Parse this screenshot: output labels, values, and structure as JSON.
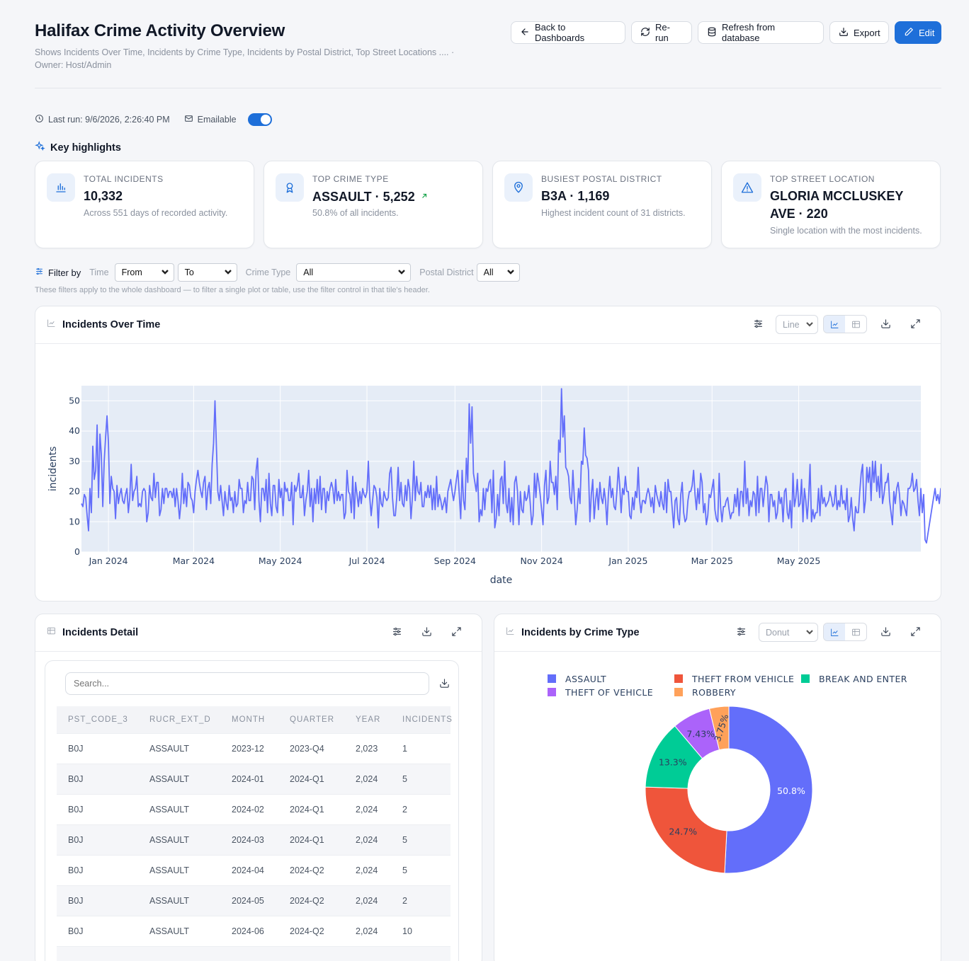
{
  "header": {
    "title": "Halifax Crime Activity Overview",
    "subtitle": "Shows Incidents Over Time, Incidents by Crime Type, Incidents by Postal District, Top Street Locations ....  ·  Owner: Host/Admin",
    "buttons": {
      "back": "Back to Dashboards",
      "rerun": "Re-run",
      "refresh": "Refresh from database",
      "export": "Export",
      "edit": "Edit"
    }
  },
  "meta": {
    "last_run": "Last run: 9/6/2026, 2:26:40 PM",
    "emailable": "Emailable",
    "emailable_on": true
  },
  "highlights": {
    "title": "Key highlights",
    "cards": [
      {
        "label": "Total incidents",
        "value": "10,332",
        "sub": "Across 551 days of recorded activity.",
        "icon": "bar-chart-icon"
      },
      {
        "label": "Top crime type",
        "value": "ASSAULT · 5,252",
        "sub": "50.8% of all incidents.",
        "icon": "award-icon"
      },
      {
        "label": "Busiest postal district",
        "value": "B3A · 1,169",
        "sub": "Highest incident count of 31 districts.",
        "icon": "map-pin-icon"
      },
      {
        "label": "Top street location",
        "value": "GLORIA MCCLUSKEY AVE · 220",
        "sub": "Single location with the most incidents.",
        "icon": "alert-triangle-icon"
      }
    ]
  },
  "filters": {
    "label": "Filter by",
    "time_label": "Time",
    "from": "From",
    "to": "To",
    "crime_label": "Crime Type",
    "crime_value": "All",
    "postal_label": "Postal District",
    "postal_value": "All",
    "note": "These filters apply to the whole dashboard — to filter a single plot or table, use the filter control in that tile's header."
  },
  "panels": {
    "over_time": {
      "title": "Incidents Over Time",
      "view": "Line"
    },
    "detail": {
      "title": "Incidents Detail",
      "search_placeholder": "Search..."
    },
    "crime_type": {
      "title": "Incidents by Crime Type",
      "view": "Donut"
    }
  },
  "table": {
    "columns": [
      "PST_CODE_3",
      "RUCR_EXT_D",
      "MONTH",
      "QUARTER",
      "YEAR",
      "INCIDENTS"
    ],
    "rows": [
      [
        "B0J",
        "ASSAULT",
        "2023-12",
        "2023-Q4",
        "2,023",
        "1"
      ],
      [
        "B0J",
        "ASSAULT",
        "2024-01",
        "2024-Q1",
        "2,024",
        "5"
      ],
      [
        "B0J",
        "ASSAULT",
        "2024-02",
        "2024-Q1",
        "2,024",
        "2"
      ],
      [
        "B0J",
        "ASSAULT",
        "2024-03",
        "2024-Q1",
        "2,024",
        "5"
      ],
      [
        "B0J",
        "ASSAULT",
        "2024-04",
        "2024-Q2",
        "2,024",
        "5"
      ],
      [
        "B0J",
        "ASSAULT",
        "2024-05",
        "2024-Q2",
        "2,024",
        "2"
      ],
      [
        "B0J",
        "ASSAULT",
        "2024-06",
        "2024-Q2",
        "2,024",
        "10"
      ],
      [
        "",
        "",
        "",
        "",
        "",
        ""
      ]
    ]
  },
  "colors": {
    "accent": "#1e6fd9",
    "line": "#636efa",
    "plot_bg": "#e5ecf6"
  },
  "chart_data": [
    {
      "type": "line",
      "xlabel": "date",
      "ylabel": "incidents",
      "ylim": [
        0,
        55
      ],
      "xlim": [
        "2023-12-13",
        "2025-07-26"
      ],
      "x_ticks": [
        "Jan 2024",
        "Mar 2024",
        "May 2024",
        "Jul 2024",
        "Sep 2024",
        "Nov 2024",
        "Jan 2025",
        "Mar 2025",
        "May 2025"
      ],
      "y_ticks": [
        0,
        10,
        20,
        30,
        40,
        50
      ],
      "grid": true,
      "start_date": "2023-12-13",
      "values": [
        16,
        15,
        19,
        18,
        12,
        7,
        21,
        13,
        35,
        24,
        27,
        42,
        18,
        39,
        32,
        15,
        30,
        38,
        45,
        36,
        16,
        25,
        21,
        20,
        11,
        22,
        16,
        19,
        21,
        17,
        16,
        19,
        21,
        13,
        18,
        29,
        17,
        20,
        21,
        25,
        15,
        16,
        15,
        20,
        21,
        20,
        10,
        13,
        22,
        18,
        17,
        26,
        18,
        23,
        23,
        12,
        14,
        21,
        16,
        21,
        21,
        18,
        20,
        20,
        18,
        21,
        15,
        21,
        17,
        11,
        16,
        26,
        16,
        21,
        15,
        23,
        22,
        18,
        17,
        13,
        20,
        24,
        27,
        23,
        20,
        18,
        23,
        25,
        14,
        21,
        23,
        16,
        29,
        36,
        50,
        35,
        20,
        17,
        22,
        17,
        12,
        20,
        16,
        14,
        22,
        17,
        18,
        13,
        20,
        15,
        16,
        24,
        21,
        21,
        13,
        17,
        16,
        23,
        17,
        17,
        25,
        24,
        14,
        27,
        31,
        17,
        10,
        21,
        21,
        17,
        24,
        13,
        26,
        16,
        12,
        22,
        22,
        15,
        13,
        24,
        18,
        21,
        12,
        23,
        20,
        21,
        17,
        17,
        23,
        9,
        22,
        20,
        22,
        26,
        18,
        18,
        22,
        12,
        17,
        20,
        27,
        15,
        21,
        10,
        21,
        16,
        24,
        16,
        25,
        14,
        21,
        21,
        13,
        20,
        17,
        21,
        23,
        21,
        16,
        24,
        17,
        20,
        17,
        19,
        19,
        11,
        13,
        27,
        20,
        19,
        13,
        25,
        11,
        23,
        19,
        15,
        20,
        16,
        21,
        19,
        18,
        20,
        30,
        18,
        12,
        17,
        22,
        21,
        18,
        8,
        21,
        16,
        15,
        20,
        18,
        17,
        18,
        26,
        28,
        18,
        12,
        12,
        18,
        28,
        17,
        23,
        16,
        15,
        22,
        17,
        24,
        21,
        11,
        18,
        30,
        17,
        25,
        20,
        19,
        23,
        15,
        15,
        20,
        18,
        22,
        18,
        22,
        14,
        21,
        14,
        25,
        15,
        19,
        17,
        14,
        16,
        18,
        13,
        20,
        22,
        24,
        20,
        17,
        20,
        24,
        27,
        19,
        11,
        27,
        17,
        14,
        31,
        23,
        49,
        36,
        48,
        26,
        23,
        20,
        26,
        10,
        14,
        12,
        21,
        14,
        21,
        20,
        23,
        24,
        13,
        27,
        8,
        11,
        19,
        12,
        24,
        25,
        16,
        30,
        16,
        13,
        21,
        10,
        18,
        9,
        23,
        25,
        20,
        9,
        20,
        14,
        13,
        20,
        17,
        18,
        22,
        16,
        9,
        12,
        26,
        18,
        26,
        23,
        19,
        14,
        9,
        22,
        27,
        16,
        18,
        30,
        23,
        23,
        19,
        25,
        14,
        37,
        33,
        54,
        38,
        45,
        28,
        27,
        25,
        18,
        16,
        27,
        18,
        9,
        14,
        21,
        16,
        30,
        29,
        41,
        32,
        31,
        27,
        10,
        19,
        24,
        11,
        17,
        21,
        14,
        23,
        18,
        16,
        21,
        17,
        9,
        19,
        25,
        18,
        21,
        15,
        14,
        20,
        28,
        22,
        13,
        21,
        19,
        25,
        20,
        20,
        12,
        11,
        18,
        14,
        20,
        18,
        28,
        17,
        13,
        17,
        17,
        16,
        19,
        21,
        19,
        15,
        18,
        13,
        22,
        19,
        17,
        15,
        20,
        16,
        14,
        23,
        13,
        24,
        20,
        20,
        14,
        8,
        17,
        18,
        11,
        9,
        19,
        23,
        13,
        10,
        11,
        17,
        20,
        20,
        22,
        27,
        19,
        14,
        21,
        16,
        26,
        23,
        13,
        16,
        9,
        12,
        19,
        18,
        21,
        24,
        14,
        11,
        10,
        26,
        15,
        10,
        15,
        15,
        17,
        18,
        14,
        11,
        13,
        13,
        19,
        15,
        21,
        12,
        20,
        20,
        15,
        30,
        16,
        21,
        12,
        17,
        15,
        20,
        19,
        12,
        25,
        13,
        21,
        21,
        15,
        20,
        25,
        22,
        10,
        19,
        19,
        15,
        17,
        11,
        13,
        20,
        16,
        18,
        10,
        20,
        21,
        13,
        11,
        17,
        8,
        26,
        15,
        18,
        24,
        15,
        16,
        24,
        10,
        21,
        17,
        11,
        18,
        29,
        10,
        14,
        11,
        13,
        13,
        21,
        12,
        22,
        16,
        18,
        15,
        16,
        17,
        20,
        18,
        15,
        16,
        22,
        14,
        17,
        15,
        22,
        16,
        17,
        14,
        21,
        10,
        12,
        18,
        11,
        7,
        15,
        13,
        13,
        20,
        26,
        29,
        13,
        17,
        28,
        23,
        28,
        17,
        30,
        23,
        30,
        20,
        25,
        18,
        29,
        16,
        19,
        23,
        23,
        26,
        17,
        13,
        9,
        20,
        16,
        21,
        23,
        19,
        12,
        17,
        16,
        14,
        12,
        21,
        21,
        22,
        26,
        20,
        21,
        24,
        17,
        12,
        21,
        13,
        19,
        4,
        3,
        6,
        9,
        12,
        15,
        18,
        21,
        17,
        19,
        16,
        21,
        15,
        23,
        33,
        24,
        22,
        21,
        17,
        19,
        8
      ]
    },
    {
      "type": "pie",
      "donut": true,
      "labels": [
        "ASSAULT",
        "THEFT FROM VEHICLE",
        "BREAK AND ENTER",
        "THEFT OF VEHICLE",
        "ROBBERY"
      ],
      "values": [
        50.8,
        24.7,
        13.3,
        7.43,
        3.75
      ],
      "value_labels": [
        "50.8%",
        "24.7%",
        "13.3%",
        "7.43%",
        "3.75%"
      ],
      "colors": [
        "#636efa",
        "#ef553b",
        "#00cc96",
        "#ab63fa",
        "#ffa15a"
      ],
      "legend": "top"
    }
  ]
}
